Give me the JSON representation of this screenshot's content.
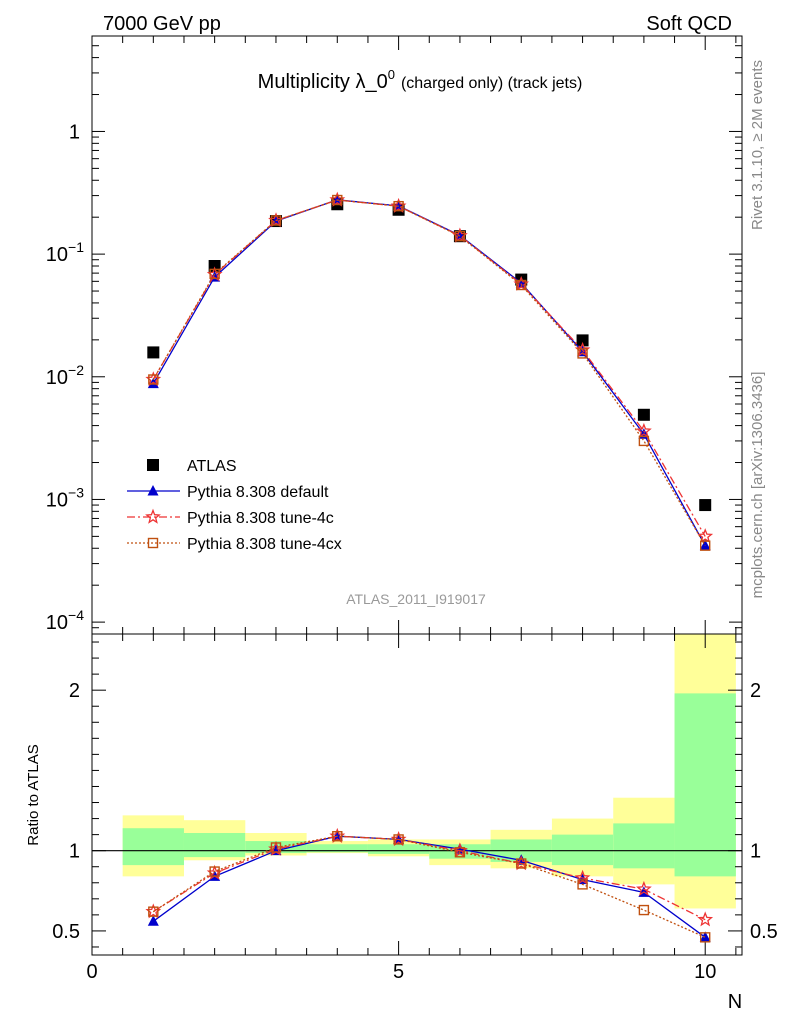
{
  "header": {
    "left": "7000 GeV pp",
    "right": "Soft QCD"
  },
  "side_labels": {
    "rivet": "Rivet 3.1.10, ≥ 2M events",
    "mcplots": "mcplots.cern.ch [arXiv:1306.3436]"
  },
  "chart_data": [
    {
      "type": "scatter",
      "title_main": "Multiplicity λ_0",
      "title_sup": "0",
      "title_sub": "(charged only) (track jets)",
      "watermark": "ATLAS_2011_I919017",
      "xlim": [
        0,
        10.6
      ],
      "ylim": [
        8e-05,
        6
      ],
      "yscale": "log",
      "xlabel": "",
      "ylabel": "",
      "y_ticks": [
        {
          "v": 1,
          "base": "1",
          "exp": ""
        },
        {
          "v": 0.1,
          "base": "10",
          "exp": "−1"
        },
        {
          "v": 0.01,
          "base": "10",
          "exp": "−2"
        },
        {
          "v": 0.001,
          "base": "10",
          "exp": "−3"
        },
        {
          "v": 0.0001,
          "base": "10",
          "exp": "−4"
        }
      ],
      "legend_placement": "lower-left",
      "series": [
        {
          "name": "ATLAS",
          "color": "#000000",
          "marker": "square",
          "x": [
            1,
            2,
            3,
            4,
            5,
            6,
            7,
            8,
            9,
            10
          ],
          "y": [
            0.0158,
            0.08,
            0.186,
            0.255,
            0.23,
            0.14,
            0.062,
            0.0198,
            0.0049,
            0.0009
          ]
        },
        {
          "name": "Pythia 8.308 default",
          "color": "#0000cc",
          "marker": "triangle",
          "line": "solid",
          "x": [
            1,
            2,
            3,
            4,
            5,
            6,
            7,
            8,
            9,
            10
          ],
          "y": [
            0.0088,
            0.065,
            0.186,
            0.277,
            0.247,
            0.142,
            0.058,
            0.016,
            0.0034,
            0.00042
          ]
        },
        {
          "name": "Pythia 8.308 tune-4c",
          "color": "#ee3333",
          "marker": "star",
          "line": "dashdot",
          "x": [
            1,
            2,
            3,
            4,
            5,
            6,
            7,
            8,
            9,
            10
          ],
          "y": [
            0.0095,
            0.068,
            0.188,
            0.276,
            0.246,
            0.141,
            0.057,
            0.0165,
            0.0036,
            0.0005
          ]
        },
        {
          "name": "Pythia 8.308 tune-4cx",
          "color": "#c05010",
          "marker": "open-square",
          "line": "dotted",
          "x": [
            1,
            2,
            3,
            4,
            5,
            6,
            7,
            8,
            9,
            10
          ],
          "y": [
            0.0095,
            0.069,
            0.188,
            0.276,
            0.246,
            0.14,
            0.056,
            0.0155,
            0.003,
            0.00042
          ]
        }
      ]
    },
    {
      "type": "line",
      "ylabel": "Ratio to ATLAS",
      "xlabel": "N",
      "xlim": [
        0,
        10.6
      ],
      "ylim": [
        0.35,
        2.35
      ],
      "x_ticks": [
        0,
        5,
        10
      ],
      "y_ticks": [
        0.5,
        1,
        2
      ],
      "bands": {
        "x_edges": [
          0.5,
          1.5,
          2.5,
          3.5,
          4.5,
          5.5,
          6.5,
          7.5,
          8.5,
          9.5,
          10.5
        ],
        "yellow_lo": [
          0.84,
          0.94,
          0.97,
          0.985,
          0.965,
          0.91,
          0.89,
          0.84,
          0.79,
          0.64
        ],
        "yellow_hi": [
          1.22,
          1.19,
          1.11,
          1.06,
          1.07,
          1.07,
          1.13,
          1.2,
          1.33,
          2.35
        ],
        "green_lo": [
          0.91,
          0.96,
          0.985,
          0.99,
          0.98,
          0.95,
          0.93,
          0.91,
          0.89,
          0.84
        ],
        "green_hi": [
          1.14,
          1.11,
          1.06,
          1.04,
          1.04,
          1.04,
          1.07,
          1.1,
          1.17,
          1.98
        ],
        "yellow_color": "#ffff99",
        "green_color": "#99ff99"
      },
      "series": [
        {
          "name": "Pythia 8.308 default",
          "color": "#0000cc",
          "marker": "triangle",
          "line": "solid",
          "x": [
            1,
            2,
            3,
            4,
            5,
            6,
            7,
            8,
            9,
            10
          ],
          "y": [
            0.56,
            0.84,
            1.0,
            1.09,
            1.07,
            1.01,
            0.94,
            0.82,
            0.74,
            0.46
          ]
        },
        {
          "name": "Pythia 8.308 tune-4c",
          "color": "#ee3333",
          "marker": "star",
          "line": "dashdot",
          "x": [
            1,
            2,
            3,
            4,
            5,
            6,
            7,
            8,
            9,
            10
          ],
          "y": [
            0.62,
            0.86,
            1.01,
            1.09,
            1.07,
            1.0,
            0.92,
            0.83,
            0.76,
            0.57
          ]
        },
        {
          "name": "Pythia 8.308 tune-4cx",
          "color": "#c05010",
          "marker": "open-square",
          "line": "dotted",
          "x": [
            1,
            2,
            3,
            4,
            5,
            6,
            7,
            8,
            9,
            10
          ],
          "y": [
            0.62,
            0.87,
            1.02,
            1.09,
            1.07,
            0.99,
            0.92,
            0.79,
            0.63,
            0.46
          ]
        }
      ]
    }
  ]
}
